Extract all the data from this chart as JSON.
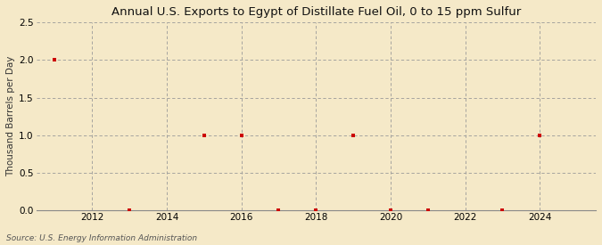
{
  "title": "Annual U.S. Exports to Egypt of Distillate Fuel Oil, 0 to 15 ppm Sulfur",
  "ylabel": "Thousand Barrels per Day",
  "source": "Source: U.S. Energy Information Administration",
  "background_color": "#f5e9c8",
  "plot_background_color": "#f5e9c8",
  "xlim": [
    2010.5,
    2025.5
  ],
  "ylim": [
    0.0,
    2.5
  ],
  "yticks": [
    0.0,
    0.5,
    1.0,
    1.5,
    2.0,
    2.5
  ],
  "xticks": [
    2012,
    2014,
    2016,
    2018,
    2020,
    2022,
    2024
  ],
  "data_x": [
    2011,
    2013,
    2015,
    2016,
    2017,
    2018,
    2019,
    2020,
    2021,
    2023,
    2024
  ],
  "data_y": [
    2.0,
    0.0,
    1.0,
    1.0,
    0.0,
    0.0,
    1.0,
    0.0,
    0.0,
    0.0,
    1.0
  ],
  "marker_color": "#cc0000",
  "marker": "s",
  "marker_size": 3.5,
  "grid_color": "#999999",
  "grid_linestyle": "--",
  "title_fontsize": 9.5,
  "ylabel_fontsize": 7.5,
  "tick_fontsize": 7.5,
  "source_fontsize": 6.5
}
